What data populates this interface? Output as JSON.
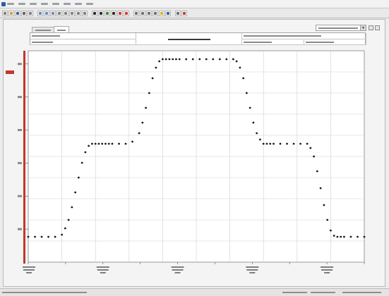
{
  "window": {
    "menu": [
      "",
      "",
      "",
      "",
      "",
      "",
      "",
      ""
    ],
    "toolbar_icons": [
      {
        "name": "new-icon",
        "color": "#7c7c7c"
      },
      {
        "name": "open-icon",
        "color": "#c9a13a"
      },
      {
        "name": "save-icon",
        "color": "#3f5f9a"
      },
      {
        "name": "print-icon",
        "color": "#5e5e5e"
      },
      {
        "name": "copy-icon",
        "color": "#7d7d7d"
      },
      {
        "name": "zoom-in-icon",
        "color": "#6a88b8"
      },
      {
        "name": "zoom-out-icon",
        "color": "#6a88b8"
      },
      {
        "name": "zoom-fit-icon",
        "color": "#6a88b8"
      },
      {
        "name": "pan-icon",
        "color": "#7d7d7d"
      },
      {
        "name": "cursor-icon",
        "color": "#7d7d7d"
      },
      {
        "name": "marker-icon",
        "color": "#7d7d7d"
      },
      {
        "name": "find-icon",
        "color": "#7d7d7d"
      },
      {
        "name": "stat-icon",
        "color": "#7d7d7d"
      },
      {
        "name": "play-icon",
        "color": "#2a2a2a"
      },
      {
        "name": "pause-icon",
        "color": "#2a2a2a"
      },
      {
        "name": "record-icon",
        "color": "#2f8a3a"
      },
      {
        "name": "step-icon",
        "color": "#2a2a2a"
      },
      {
        "name": "stop-icon",
        "color": "#d23a2a"
      },
      {
        "name": "alarm-icon",
        "color": "#d23a2a"
      },
      {
        "name": "grid-icon",
        "color": "#6e6e6e"
      },
      {
        "name": "table-icon",
        "color": "#6e6e6e"
      },
      {
        "name": "export-icon",
        "color": "#6e6e6e"
      },
      {
        "name": "import-icon",
        "color": "#6e6e6e"
      },
      {
        "name": "star-icon",
        "color": "#d9b21c"
      },
      {
        "name": "help-icon",
        "color": "#3a5fa0"
      },
      {
        "name": "chart-icon",
        "color": "#6e6e6e"
      },
      {
        "name": "logger-icon",
        "color": "#c43a3a"
      }
    ],
    "tabs": [
      {
        "label": ""
      },
      {
        "label": ""
      }
    ],
    "selector_value": "",
    "header_cells": [
      "",
      "",
      "",
      "",
      "",
      ""
    ],
    "status": [
      "",
      "",
      "",
      ""
    ]
  },
  "chart_data": {
    "type": "line",
    "line_style": "dotted",
    "line_color": "#1a1a1a",
    "accent_color": "#c0392b",
    "grid": true,
    "title": "",
    "xlabel": "",
    "ylabel": "",
    "yticks": [
      "",
      "",
      "",
      "",
      "",
      ""
    ],
    "xticks": [
      "",
      "",
      "",
      "",
      "",
      "",
      "",
      "",
      "",
      ""
    ],
    "ylim": [
      0,
      10
    ],
    "xlim": [
      0,
      100
    ],
    "series": [
      {
        "x": [
          0,
          2,
          4,
          6,
          8,
          10,
          11,
          12,
          13,
          14,
          15,
          16,
          17,
          18,
          19,
          20,
          21,
          22,
          23,
          24,
          25,
          27,
          29,
          31,
          33,
          34,
          35,
          36,
          37,
          38,
          39,
          40,
          41,
          42,
          43,
          44,
          45,
          47,
          49,
          51,
          53,
          55,
          57,
          59,
          61,
          62,
          63,
          64,
          65,
          66,
          67,
          68,
          69,
          70,
          71,
          72,
          73,
          75,
          77,
          79,
          81,
          83,
          84,
          85,
          86,
          87,
          88,
          89,
          90,
          91,
          92,
          93,
          94,
          96,
          98,
          100
        ],
        "y": [
          1.2,
          1.2,
          1.2,
          1.2,
          1.2,
          1.3,
          1.6,
          2.0,
          2.6,
          3.3,
          4.0,
          4.7,
          5.2,
          5.5,
          5.6,
          5.6,
          5.6,
          5.6,
          5.6,
          5.6,
          5.6,
          5.6,
          5.6,
          5.7,
          6.1,
          6.6,
          7.3,
          8.0,
          8.7,
          9.2,
          9.5,
          9.6,
          9.6,
          9.6,
          9.6,
          9.6,
          9.6,
          9.6,
          9.6,
          9.6,
          9.6,
          9.6,
          9.6,
          9.6,
          9.6,
          9.5,
          9.2,
          8.7,
          8.0,
          7.3,
          6.6,
          6.1,
          5.8,
          5.6,
          5.6,
          5.6,
          5.6,
          5.6,
          5.6,
          5.6,
          5.6,
          5.6,
          5.4,
          5.0,
          4.3,
          3.5,
          2.7,
          2.0,
          1.5,
          1.25,
          1.2,
          1.2,
          1.2,
          1.2,
          1.2,
          1.2
        ]
      }
    ]
  }
}
